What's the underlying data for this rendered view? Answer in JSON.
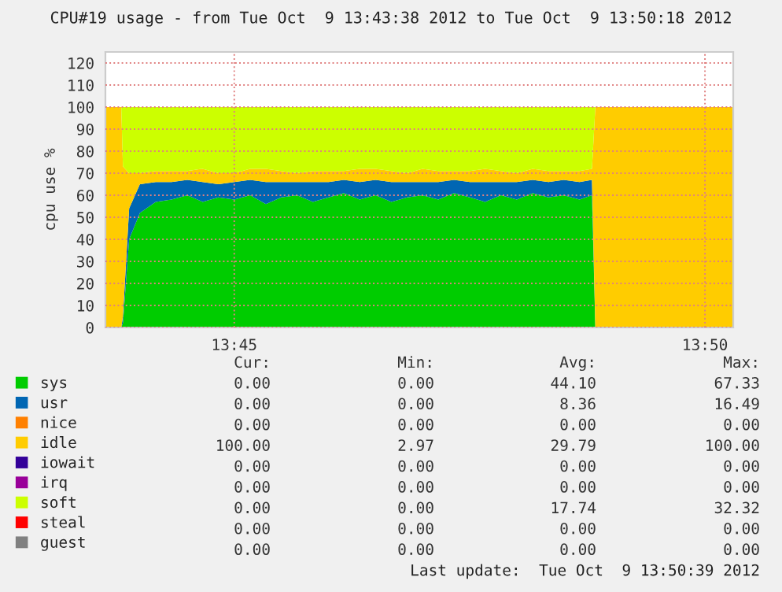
{
  "chart_data": {
    "type": "area",
    "stacked": true,
    "title": "CPU#19 usage - from Tue Oct  9 13:43:38 2012 to Tue Oct  9 13:50:18 2012",
    "ylabel": "cpu use %",
    "x": [
      13.7272,
      13.73,
      13.7303,
      13.7314,
      13.7333,
      13.7361,
      13.7389,
      13.7417,
      13.7444,
      13.7472,
      13.75,
      13.7528,
      13.7556,
      13.7583,
      13.7611,
      13.7639,
      13.7667,
      13.7694,
      13.7722,
      13.775,
      13.7778,
      13.7806,
      13.7833,
      13.7861,
      13.7889,
      13.7917,
      13.7944,
      13.7972,
      13.8,
      13.8028,
      13.8056,
      13.8083,
      13.8111,
      13.8133,
      13.8139,
      13.8383
    ],
    "series": [
      {
        "name": "sys",
        "color": "#00cc00",
        "values": [
          0,
          0,
          2,
          40,
          52,
          57,
          58,
          60,
          57,
          59,
          58,
          60,
          56,
          59,
          60,
          57,
          59,
          61,
          58,
          60,
          57,
          59,
          60,
          58,
          61,
          59,
          57,
          60,
          58,
          61,
          59,
          60,
          58,
          60,
          0,
          0
        ]
      },
      {
        "name": "usr",
        "color": "#0066b3",
        "values": [
          0,
          0,
          3,
          14,
          13,
          9,
          8,
          7,
          9,
          6,
          8,
          7,
          10,
          7,
          6,
          9,
          7,
          6,
          8,
          7,
          9,
          7,
          6,
          8,
          6,
          7,
          9,
          6,
          8,
          6,
          7,
          7,
          8,
          7,
          0,
          0
        ]
      },
      {
        "name": "nice",
        "color": "#ff8000",
        "values": [
          null,
          null,
          null,
          null,
          null,
          null,
          null,
          null,
          null,
          null,
          null,
          null,
          null,
          null,
          null,
          null,
          null,
          null,
          null,
          null,
          null,
          null,
          null,
          null,
          null,
          null,
          null,
          null,
          null,
          null,
          null,
          null,
          null,
          null,
          null,
          null
        ]
      },
      {
        "name": "idle",
        "color": "#ffcc00",
        "values": [
          100,
          100,
          68,
          16,
          5,
          5,
          5,
          4,
          6,
          5,
          4,
          5,
          6,
          5,
          4,
          5,
          5,
          4,
          6,
          5,
          5,
          4,
          6,
          5,
          4,
          5,
          6,
          5,
          4,
          5,
          5,
          4,
          5,
          5,
          100,
          100
        ]
      },
      {
        "name": "iowait",
        "color": "#330099",
        "values": [
          null,
          null,
          null,
          null,
          null,
          null,
          null,
          null,
          null,
          null,
          null,
          null,
          null,
          null,
          null,
          null,
          null,
          null,
          null,
          null,
          null,
          null,
          null,
          null,
          null,
          null,
          null,
          null,
          null,
          null,
          null,
          null,
          null,
          null,
          null,
          null
        ]
      },
      {
        "name": "irq",
        "color": "#990099",
        "values": [
          null,
          null,
          null,
          null,
          null,
          null,
          null,
          null,
          null,
          null,
          null,
          null,
          null,
          null,
          null,
          null,
          null,
          null,
          null,
          null,
          null,
          null,
          null,
          null,
          null,
          null,
          null,
          null,
          null,
          null,
          null,
          null,
          null,
          null,
          null,
          null
        ]
      },
      {
        "name": "soft",
        "color": "#ccff00",
        "values": [
          0,
          0,
          27,
          30,
          30,
          29,
          29,
          29,
          28,
          30,
          30,
          28,
          28,
          29,
          30,
          29,
          29,
          29,
          28,
          28,
          29,
          30,
          28,
          29,
          29,
          29,
          28,
          29,
          30,
          28,
          29,
          29,
          29,
          28,
          0,
          0
        ]
      },
      {
        "name": "steal",
        "color": "#ff0000",
        "values": [
          null,
          null,
          null,
          null,
          null,
          null,
          null,
          null,
          null,
          null,
          null,
          null,
          null,
          null,
          null,
          null,
          null,
          null,
          null,
          null,
          null,
          null,
          null,
          null,
          null,
          null,
          null,
          null,
          null,
          null,
          null,
          null,
          null,
          null,
          null,
          null
        ]
      },
      {
        "name": "guest",
        "color": "#808080",
        "values": [
          null,
          null,
          null,
          null,
          null,
          null,
          null,
          null,
          null,
          null,
          null,
          null,
          null,
          null,
          null,
          null,
          null,
          null,
          null,
          null,
          null,
          null,
          null,
          null,
          null,
          null,
          null,
          null,
          null,
          null,
          null,
          null,
          null,
          null,
          null,
          null
        ]
      }
    ],
    "xlim": [
      13.7272,
      13.8383
    ],
    "xticks": [
      {
        "value": 13.75,
        "label": "13:45"
      },
      {
        "value": 13.8333,
        "label": "13:50"
      }
    ],
    "ylim": [
      0,
      125
    ],
    "yticks": [
      0,
      10,
      20,
      30,
      40,
      50,
      60,
      70,
      80,
      90,
      100,
      110,
      120
    ],
    "grid": true,
    "legend": "bottom",
    "annotations": [
      "Cur:",
      "Min:",
      "Avg:",
      "Max:",
      "0.00",
      "0.00",
      "44.10",
      "67.33",
      "0.00",
      "0.00",
      "8.36",
      "16.49",
      "0.00",
      "0.00",
      "0.00",
      "0.00",
      "100.00",
      "2.97",
      "29.79",
      "100.00",
      "0.00",
      "0.00",
      "0.00",
      "0.00",
      "0.00",
      "0.00",
      "0.00",
      "0.00",
      "0.00",
      "0.00",
      "17.74",
      "32.32",
      "0.00",
      "0.00",
      "0.00",
      "0.00",
      "0.00",
      "0.00",
      "0.00",
      "0.00",
      "Last update:  Tue Oct  9 13:50:39 2012"
    ]
  }
}
